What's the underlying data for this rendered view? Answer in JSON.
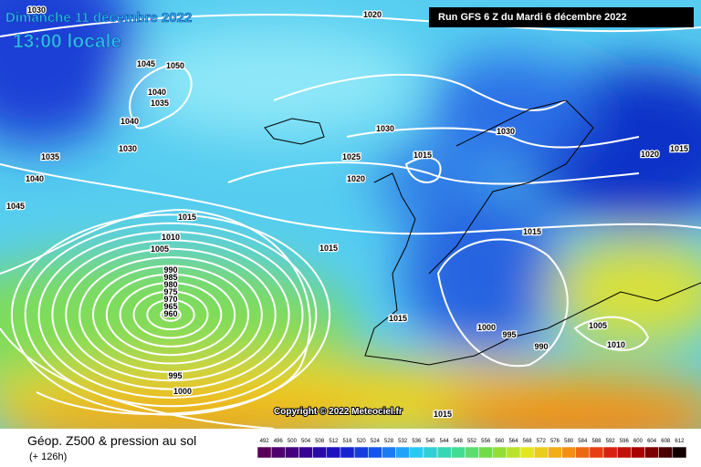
{
  "header": {
    "date": "Dimanche 11 décembre 2022",
    "time": "13:00 locale",
    "run": "Run GFS 6 Z du Mardi 6 décembre 2022"
  },
  "isobar_labels": [
    "1030",
    "1020",
    "1045",
    "1050",
    "1040",
    "1035",
    "1040",
    "1030",
    "1035",
    "1040",
    "1045",
    "1030",
    "1025",
    "1015",
    "1020",
    "1030",
    "1020",
    "1015",
    "1015",
    "1010",
    "1005",
    "1015",
    "1015",
    "990",
    "985",
    "980",
    "975",
    "970",
    "965",
    "960",
    "1015",
    "1000",
    "995",
    "990",
    "1005",
    "1010",
    "995",
    "1000",
    "1015"
  ],
  "copyright": "Copyright © 2022 Meteociel.fr",
  "footer": {
    "title": "Géop. Z500 & pression au sol",
    "subtitle": "(+ 126h)"
  },
  "colorbar_labels": [
    "492",
    "496",
    "500",
    "504",
    "508",
    "512",
    "516",
    "520",
    "524",
    "528",
    "532",
    "536",
    "540",
    "544",
    "548",
    "552",
    "556",
    "560",
    "564",
    "568",
    "572",
    "576",
    "580",
    "584",
    "588",
    "592",
    "596",
    "600",
    "604",
    "608",
    "612"
  ]
}
